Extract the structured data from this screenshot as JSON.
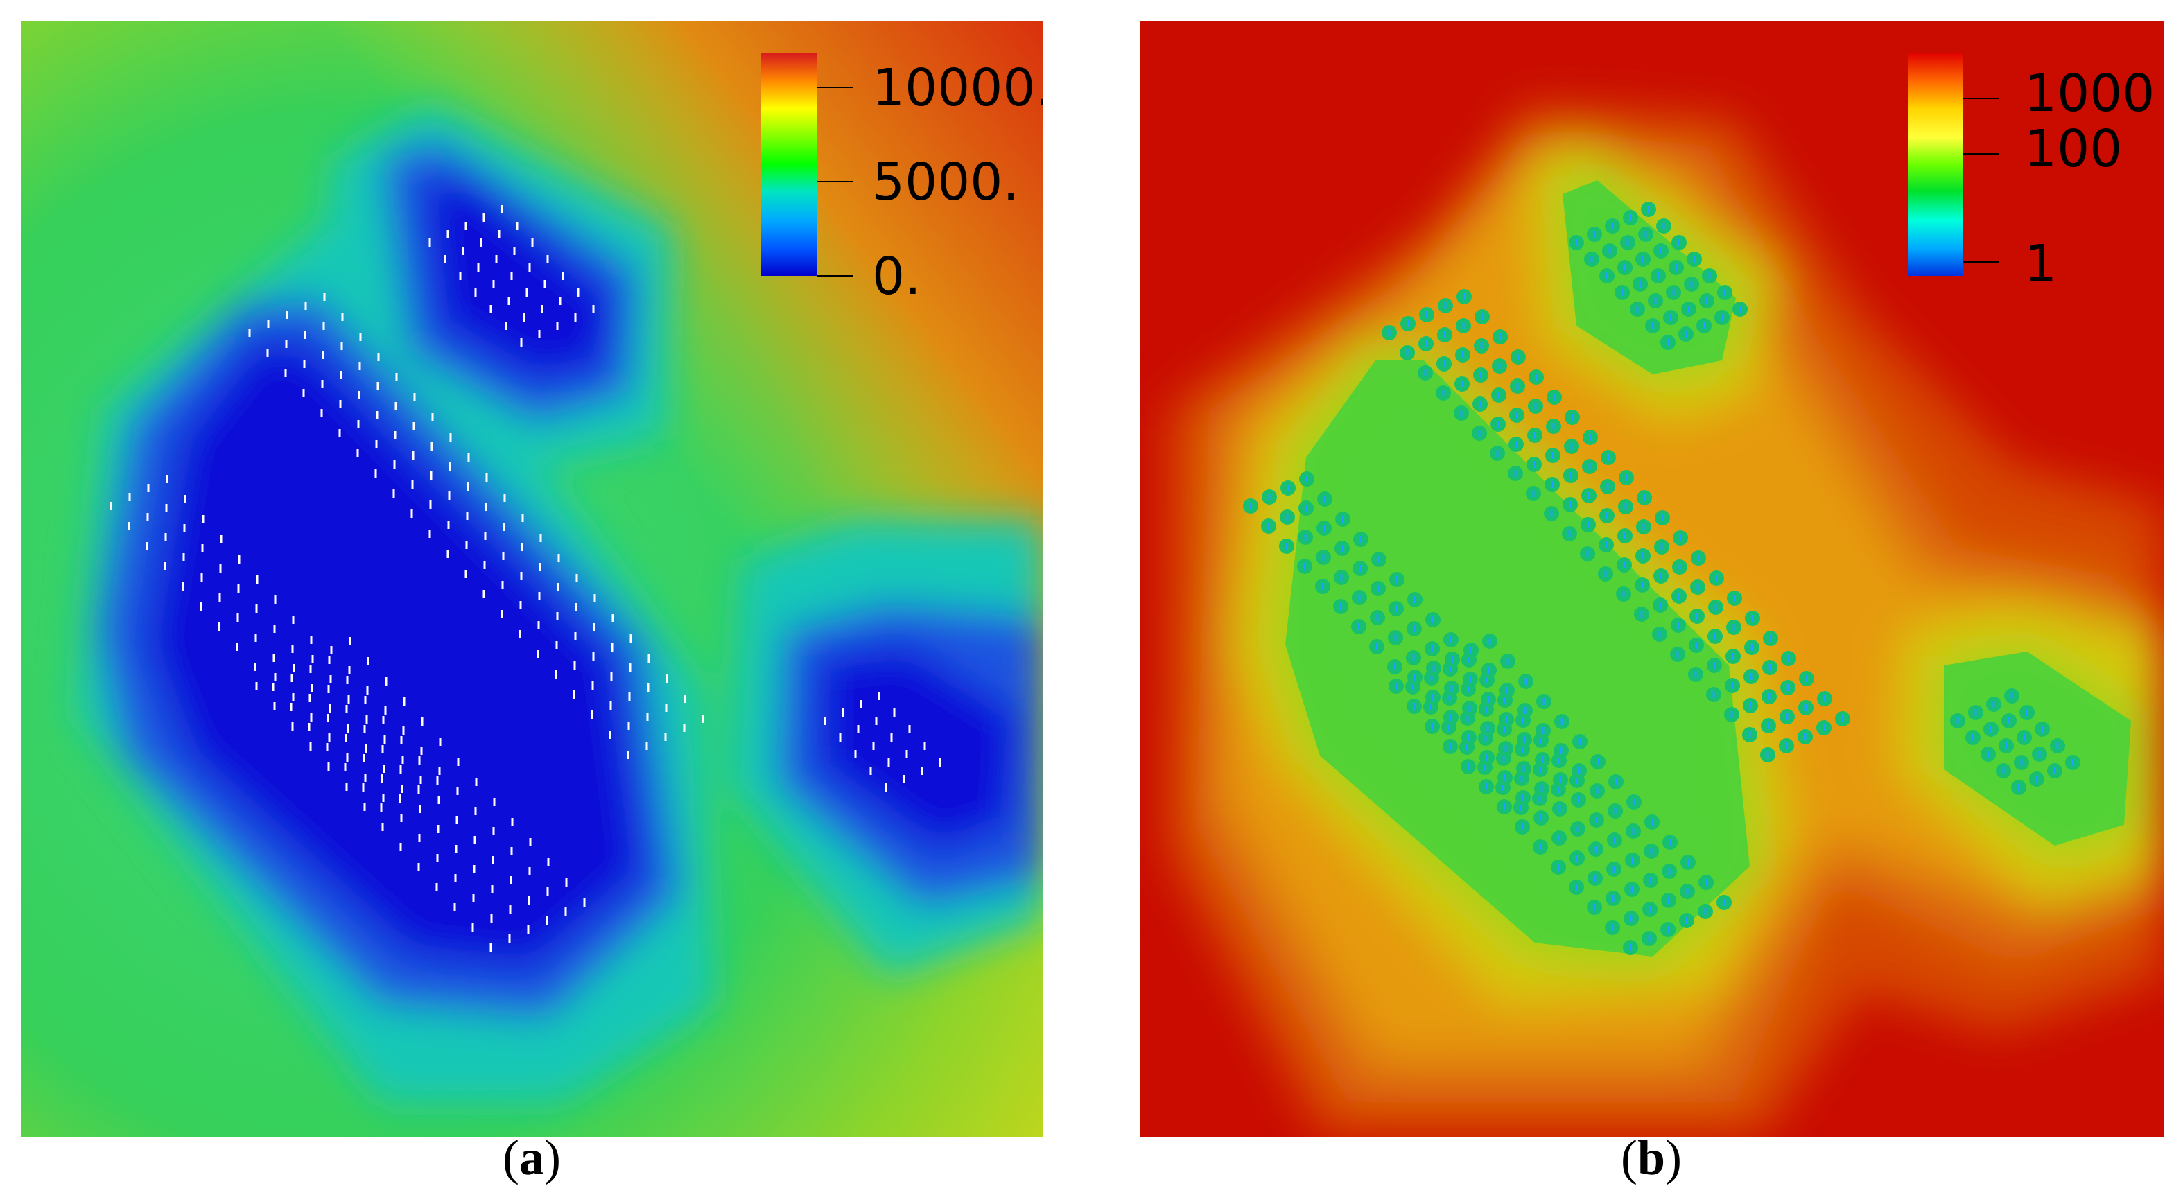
{
  "panels": [
    {
      "id": "a",
      "caption_letter": "a",
      "colorbar": {
        "ticks": [
          "10000.",
          "5000.",
          "0."
        ],
        "scale": "linear",
        "colors": [
          "#d7191c",
          "#ff8c00",
          "#ffff00",
          "#7fff00",
          "#00ff00",
          "#00e5c0",
          "#00aaff",
          "#0055ff",
          "#0000cc"
        ]
      },
      "field_colors": [
        "#1010d8",
        "#1a55e0",
        "#13a8d0",
        "#16c7b6",
        "#3cd47a",
        "#5fd13e",
        "#c9d61a",
        "#e08a12",
        "#d9300d"
      ]
    },
    {
      "id": "b",
      "caption_letter": "b",
      "colorbar": {
        "ticks": [
          "1000",
          "100",
          "1"
        ],
        "scale": "log",
        "colors": [
          "#e10000",
          "#ff6a00",
          "#ffd400",
          "#ffff3a",
          "#6cff00",
          "#00e02a",
          "#00ffdc",
          "#00a8ff",
          "#0032e0"
        ]
      },
      "field_colors": [
        "#1fcf6a",
        "#4ad23a",
        "#9dd31d",
        "#d6c80f",
        "#e59a0b",
        "#dd6a07",
        "#d64605",
        "#cf2103",
        "#c90b00"
      ]
    }
  ]
}
